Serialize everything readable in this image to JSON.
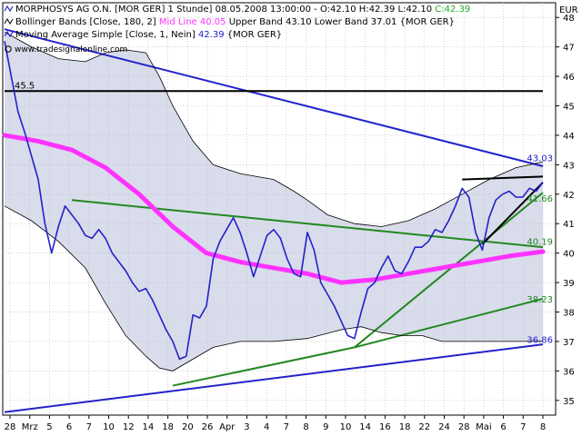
{
  "header": {
    "line1": {
      "name": "MORPHOSYS AG O.N.",
      "details": "[MOR GER] 1 Stunde] 08.05.2008 13:00:00 - O:42.10 H:42.39 L:42.10",
      "close_label": "C:42.39",
      "close_color": "#22aa22"
    },
    "line2": {
      "name": "Bollinger Bands [Close, 180, 2]",
      "mid_label": "Mid Line 40.05",
      "mid_color": "#ff33ff",
      "rest": "Upper Band 43.10 Lower Band 37.01 {MOR GER}"
    },
    "line3": {
      "name": "Moving Average Simple [Close, 1, Nein]",
      "value": "42.39",
      "value_color": "#2222cc",
      "rest": "{MOR GER}"
    },
    "watermark": "www.tradesignalonline.com"
  },
  "chart_data": {
    "type": "line",
    "currency": "EUR",
    "y_ticks": [
      "35",
      "36",
      "37",
      "38",
      "39",
      "40",
      "41",
      "42",
      "43",
      "44",
      "45",
      "46",
      "47",
      "48"
    ],
    "ylim": [
      34.5,
      48.5
    ],
    "x_ticks": [
      "28",
      "Mrz",
      "5",
      "6",
      "7",
      "10",
      "12",
      "14",
      "18",
      "20",
      "26",
      "Apr",
      "3",
      "4",
      "7",
      "8",
      "9",
      "10",
      "14",
      "16",
      "18",
      "22",
      "24",
      "28",
      "Mai",
      "6",
      "7",
      "8"
    ],
    "series": [
      {
        "name": "Moving Average Simple [Close, 1, Nein]",
        "color": "#2222cc",
        "points": [
          [
            0,
            47.2
          ],
          [
            2,
            46.0
          ],
          [
            4,
            44.8
          ],
          [
            6,
            44.1
          ],
          [
            8,
            43.3
          ],
          [
            10,
            42.5
          ],
          [
            12,
            41.0
          ],
          [
            14,
            40.0
          ],
          [
            16,
            40.9
          ],
          [
            18,
            41.6
          ],
          [
            20,
            41.3
          ],
          [
            22,
            41.0
          ],
          [
            24,
            40.6
          ],
          [
            26,
            40.5
          ],
          [
            28,
            40.8
          ],
          [
            30,
            40.5
          ],
          [
            32,
            40.0
          ],
          [
            34,
            39.7
          ],
          [
            36,
            39.4
          ],
          [
            38,
            39.0
          ],
          [
            40,
            38.7
          ],
          [
            42,
            38.8
          ],
          [
            44,
            38.4
          ],
          [
            46,
            37.9
          ],
          [
            48,
            37.4
          ],
          [
            50,
            37.0
          ],
          [
            52,
            36.4
          ],
          [
            54,
            36.5
          ],
          [
            56,
            37.9
          ],
          [
            58,
            37.8
          ],
          [
            60,
            38.2
          ],
          [
            62,
            39.8
          ],
          [
            64,
            40.4
          ],
          [
            66,
            40.8
          ],
          [
            68,
            41.2
          ],
          [
            70,
            40.7
          ],
          [
            72,
            40.0
          ],
          [
            74,
            39.2
          ],
          [
            76,
            39.9
          ],
          [
            78,
            40.6
          ],
          [
            80,
            40.8
          ],
          [
            82,
            40.5
          ],
          [
            84,
            39.8
          ],
          [
            86,
            39.3
          ],
          [
            88,
            39.2
          ],
          [
            90,
            40.7
          ],
          [
            92,
            40.1
          ],
          [
            94,
            39.0
          ],
          [
            96,
            38.6
          ],
          [
            98,
            38.2
          ],
          [
            100,
            37.7
          ],
          [
            102,
            37.2
          ],
          [
            104,
            37.1
          ],
          [
            106,
            38.0
          ],
          [
            108,
            38.8
          ],
          [
            110,
            39.0
          ],
          [
            112,
            39.5
          ],
          [
            114,
            39.9
          ],
          [
            116,
            39.4
          ],
          [
            118,
            39.3
          ],
          [
            120,
            39.7
          ],
          [
            122,
            40.2
          ],
          [
            124,
            40.2
          ],
          [
            126,
            40.4
          ],
          [
            128,
            40.8
          ],
          [
            130,
            40.7
          ],
          [
            132,
            41.1
          ],
          [
            134,
            41.6
          ],
          [
            136,
            42.2
          ],
          [
            138,
            41.9
          ],
          [
            140,
            40.7
          ],
          [
            142,
            40.1
          ],
          [
            144,
            41.2
          ],
          [
            146,
            41.8
          ],
          [
            148,
            42.0
          ],
          [
            150,
            42.1
          ],
          [
            152,
            41.9
          ],
          [
            154,
            41.9
          ],
          [
            156,
            42.2
          ],
          [
            158,
            42.1
          ],
          [
            160,
            42.4
          ]
        ]
      },
      {
        "name": "Mid Line",
        "color": "#ff33ff",
        "points": [
          [
            0,
            44.0
          ],
          [
            10,
            43.8
          ],
          [
            20,
            43.5
          ],
          [
            30,
            42.9
          ],
          [
            40,
            42.0
          ],
          [
            50,
            40.9
          ],
          [
            60,
            40.0
          ],
          [
            70,
            39.7
          ],
          [
            80,
            39.5
          ],
          [
            90,
            39.3
          ],
          [
            100,
            39.0
          ],
          [
            110,
            39.1
          ],
          [
            120,
            39.3
          ],
          [
            130,
            39.5
          ],
          [
            140,
            39.7
          ],
          [
            150,
            39.9
          ],
          [
            160,
            40.05
          ]
        ]
      },
      {
        "name": "Upper Band",
        "color": "#000000",
        "points": [
          [
            0,
            47.5
          ],
          [
            8,
            47.0
          ],
          [
            16,
            46.6
          ],
          [
            24,
            46.5
          ],
          [
            30,
            46.8
          ],
          [
            36,
            46.9
          ],
          [
            42,
            46.8
          ],
          [
            46,
            46.0
          ],
          [
            50,
            45.0
          ],
          [
            56,
            43.8
          ],
          [
            62,
            43.0
          ],
          [
            70,
            42.7
          ],
          [
            80,
            42.5
          ],
          [
            86,
            42.1
          ],
          [
            90,
            41.8
          ],
          [
            96,
            41.3
          ],
          [
            104,
            41.0
          ],
          [
            112,
            40.9
          ],
          [
            120,
            41.1
          ],
          [
            128,
            41.5
          ],
          [
            136,
            42.0
          ],
          [
            144,
            42.5
          ],
          [
            152,
            42.9
          ],
          [
            160,
            43.1
          ]
        ]
      },
      {
        "name": "Lower Band",
        "color": "#000000",
        "points": [
          [
            0,
            41.6
          ],
          [
            8,
            41.1
          ],
          [
            16,
            40.4
          ],
          [
            24,
            39.5
          ],
          [
            30,
            38.3
          ],
          [
            36,
            37.2
          ],
          [
            42,
            36.5
          ],
          [
            46,
            36.1
          ],
          [
            50,
            36.0
          ],
          [
            56,
            36.4
          ],
          [
            62,
            36.8
          ],
          [
            70,
            37.0
          ],
          [
            80,
            37.0
          ],
          [
            90,
            37.1
          ],
          [
            100,
            37.4
          ],
          [
            106,
            37.5
          ],
          [
            112,
            37.3
          ],
          [
            118,
            37.2
          ],
          [
            124,
            37.2
          ],
          [
            130,
            37.0
          ],
          [
            136,
            37.0
          ],
          [
            144,
            37.0
          ],
          [
            152,
            37.0
          ],
          [
            160,
            37.01
          ]
        ]
      }
    ],
    "trendlines": [
      {
        "color": "#2222cc",
        "from": [
          0,
          47.6
        ],
        "to": [
          160,
          42.95
        ]
      },
      {
        "color": "#2222cc",
        "from": [
          0,
          34.6
        ],
        "to": [
          160,
          36.9
        ]
      },
      {
        "color": "#000000",
        "from": [
          0,
          45.5
        ],
        "to": [
          160,
          45.5
        ]
      },
      {
        "color": "#228822",
        "from": [
          20,
          41.8
        ],
        "to": [
          160,
          40.2
        ]
      },
      {
        "color": "#228822",
        "from": [
          50,
          35.5
        ],
        "to": [
          104,
          36.8
        ]
      },
      {
        "color": "#228822",
        "from": [
          104,
          36.8
        ],
        "to": [
          160,
          38.45
        ]
      },
      {
        "color": "#228822",
        "from": [
          104,
          36.8
        ],
        "to": [
          160,
          42.05
        ]
      },
      {
        "color": "#000000",
        "from": [
          136,
          42.5
        ],
        "to": [
          160,
          42.6
        ]
      },
      {
        "color": "#000000",
        "from": [
          142,
          40.3
        ],
        "to": [
          160,
          42.4
        ]
      }
    ],
    "level_labels": [
      {
        "text": "45.5",
        "y": 45.5,
        "color": "#000000"
      },
      {
        "text": "43.03",
        "y": 43.03,
        "color": "#2222cc"
      },
      {
        "text": "41.66",
        "y": 41.66,
        "color": "#228822"
      },
      {
        "text": "40.19",
        "y": 40.19,
        "color": "#228822"
      },
      {
        "text": "38.23",
        "y": 38.23,
        "color": "#228822"
      },
      {
        "text": "36.86",
        "y": 36.86,
        "color": "#2222cc"
      }
    ],
    "band_fill": "#d9dcea",
    "grid": true
  }
}
